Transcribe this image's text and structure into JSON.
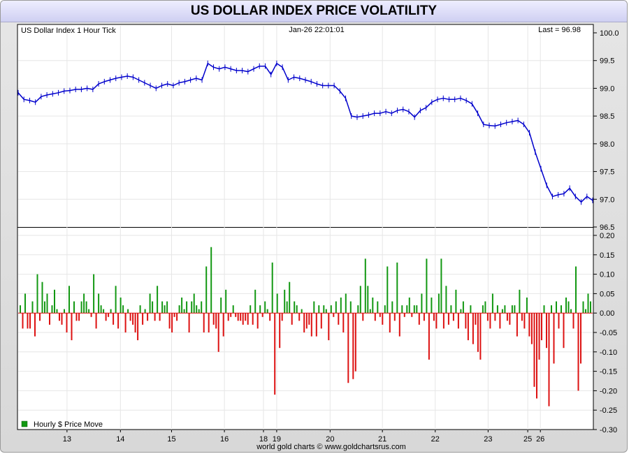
{
  "window": {
    "title": "US DOLLAR INDEX PRICE VOLATILITY"
  },
  "colors": {
    "price_line": "#0000cc",
    "up_bar": "#129812",
    "down_bar": "#dd1111",
    "grid": "#e6e6e6"
  },
  "chart_data": [
    {
      "type": "line",
      "title": "US Dollar Index 1 Hour Tick",
      "timestamp_label": "Jan-26  22:01:01",
      "last_label": "Last = 96.98",
      "ylim": [
        96.5,
        100.0
      ],
      "y_ticks": [
        "96.5",
        "97.0",
        "97.5",
        "98.0",
        "98.5",
        "99.0",
        "99.5",
        "100.0"
      ],
      "grid": true,
      "x_index_range": [
        0,
        100
      ],
      "series": [
        {
          "points": [
            [
              0,
              98.92
            ],
            [
              1,
              98.8
            ],
            [
              2,
              98.78
            ],
            [
              3,
              98.75
            ],
            [
              4,
              98.85
            ],
            [
              5,
              98.88
            ],
            [
              6,
              98.9
            ],
            [
              7,
              98.92
            ],
            [
              8,
              98.95
            ],
            [
              9,
              98.96
            ],
            [
              10,
              98.98
            ],
            [
              11,
              98.98
            ],
            [
              12,
              99.0
            ],
            [
              13,
              98.98
            ],
            [
              14,
              99.08
            ],
            [
              15,
              99.12
            ],
            [
              16,
              99.15
            ],
            [
              17,
              99.18
            ],
            [
              18,
              99.2
            ],
            [
              19,
              99.22
            ],
            [
              20,
              99.2
            ],
            [
              21,
              99.15
            ],
            [
              22,
              99.1
            ],
            [
              23,
              99.05
            ],
            [
              24,
              99.0
            ],
            [
              25,
              99.05
            ],
            [
              26,
              99.08
            ],
            [
              27,
              99.05
            ],
            [
              28,
              99.1
            ],
            [
              29,
              99.12
            ],
            [
              30,
              99.15
            ],
            [
              31,
              99.18
            ],
            [
              32,
              99.15
            ],
            [
              33,
              99.45
            ],
            [
              34,
              99.38
            ],
            [
              35,
              99.35
            ],
            [
              36,
              99.38
            ],
            [
              37,
              99.35
            ],
            [
              38,
              99.32
            ],
            [
              39,
              99.32
            ],
            [
              40,
              99.3
            ],
            [
              41,
              99.35
            ],
            [
              42,
              99.4
            ],
            [
              43,
              99.4
            ],
            [
              44,
              99.25
            ],
            [
              45,
              99.45
            ],
            [
              46,
              99.38
            ],
            [
              47,
              99.15
            ],
            [
              48,
              99.2
            ],
            [
              49,
              99.18
            ],
            [
              50,
              99.15
            ],
            [
              51,
              99.12
            ],
            [
              52,
              99.08
            ],
            [
              53,
              99.05
            ],
            [
              54,
              99.05
            ],
            [
              55,
              99.05
            ],
            [
              56,
              98.95
            ],
            [
              57,
              98.82
            ],
            [
              58,
              98.5
            ],
            [
              59,
              98.48
            ],
            [
              60,
              98.5
            ],
            [
              61,
              98.52
            ],
            [
              62,
              98.55
            ],
            [
              63,
              98.55
            ],
            [
              64,
              98.58
            ],
            [
              65,
              98.55
            ],
            [
              66,
              98.6
            ],
            [
              67,
              98.62
            ],
            [
              68,
              98.58
            ],
            [
              69,
              98.48
            ],
            [
              70,
              98.6
            ],
            [
              71,
              98.65
            ],
            [
              72,
              98.75
            ],
            [
              73,
              98.8
            ],
            [
              74,
              98.82
            ],
            [
              75,
              98.8
            ],
            [
              76,
              98.8
            ],
            [
              77,
              98.82
            ],
            [
              78,
              98.78
            ],
            [
              79,
              98.72
            ],
            [
              80,
              98.55
            ],
            [
              81,
              98.35
            ],
            [
              82,
              98.33
            ],
            [
              83,
              98.32
            ],
            [
              84,
              98.35
            ],
            [
              85,
              98.38
            ],
            [
              86,
              98.4
            ],
            [
              87,
              98.42
            ],
            [
              88,
              98.35
            ],
            [
              89,
              98.2
            ],
            [
              90,
              97.85
            ],
            [
              91,
              97.55
            ],
            [
              92,
              97.25
            ],
            [
              93,
              97.05
            ],
            [
              94,
              97.08
            ],
            [
              95,
              97.1
            ],
            [
              96,
              97.2
            ],
            [
              97,
              97.05
            ],
            [
              98,
              96.95
            ],
            [
              99,
              97.05
            ],
            [
              100,
              96.98
            ]
          ]
        }
      ]
    },
    {
      "type": "bar",
      "ylim": [
        -0.3,
        0.2
      ],
      "y_ticks": [
        "-0.30",
        "-0.25",
        "-0.20",
        "-0.15",
        "-0.10",
        "-0.05",
        "0.00",
        "0.05",
        "0.10",
        "0.15",
        "0.20"
      ],
      "legend": "Hourly $ Price Move",
      "legend_position": "bottom-left",
      "x_tick_labels": [
        {
          "text": "13",
          "index": 8.5
        },
        {
          "text": "14",
          "index": 17.8
        },
        {
          "text": "15",
          "index": 26.7
        },
        {
          "text": "16",
          "index": 35.9
        },
        {
          "text": "18",
          "index": 42.7
        },
        {
          "text": "19",
          "index": 45.0
        },
        {
          "text": "20",
          "index": 54.3
        },
        {
          "text": "21",
          "index": 63.4
        },
        {
          "text": "22",
          "index": 72.6
        },
        {
          "text": "23",
          "index": 81.8
        },
        {
          "text": "25",
          "index": 88.7
        },
        {
          "text": "26",
          "index": 90.9
        }
      ],
      "values": [
        0.02,
        -0.04,
        0.05,
        -0.04,
        -0.04,
        0.03,
        -0.06,
        0.1,
        -0.02,
        0.08,
        0.03,
        0.05,
        -0.03,
        0.02,
        0.06,
        0.01,
        -0.02,
        -0.03,
        0.01,
        -0.05,
        0.07,
        -0.07,
        0.03,
        -0.02,
        -0.02,
        0.03,
        0.05,
        0.03,
        0.01,
        -0.01,
        0.1,
        -0.04,
        0.05,
        0.02,
        0.01,
        -0.02,
        -0.01,
        0.01,
        -0.03,
        0.07,
        -0.04,
        0.04,
        0.02,
        -0.05,
        0.01,
        -0.02,
        -0.03,
        -0.05,
        -0.07,
        0.02,
        -0.03,
        0.01,
        -0.02,
        0.05,
        0.03,
        -0.02,
        0.07,
        -0.02,
        0.03,
        0.02,
        0.03,
        -0.04,
        -0.05,
        -0.01,
        -0.02,
        0.02,
        0.04,
        0.01,
        0.03,
        -0.05,
        0.03,
        0.05,
        0.02,
        0.01,
        0.03,
        -0.05,
        0.12,
        -0.05,
        0.17,
        -0.03,
        -0.04,
        -0.1,
        0.04,
        -0.06,
        0.06,
        -0.02,
        -0.01,
        0.02,
        -0.01,
        -0.02,
        -0.02,
        -0.03,
        -0.02,
        -0.03,
        0.02,
        -0.03,
        0.06,
        -0.04,
        0.02,
        -0.01,
        0.03,
        0.01,
        -0.02,
        0.13,
        -0.21,
        0.05,
        -0.09,
        -0.02,
        0.06,
        0.03,
        0.08,
        -0.03,
        0.03,
        0.02,
        -0.02,
        0.01,
        -0.05,
        -0.04,
        -0.03,
        -0.06,
        0.03,
        -0.06,
        0.02,
        -0.04,
        0.02,
        0.01,
        -0.07,
        0.02,
        -0.01,
        0.03,
        -0.03,
        0.04,
        -0.05,
        0.05,
        -0.18,
        0.03,
        -0.17,
        -0.15,
        0.02,
        0.07,
        -0.02,
        0.14,
        0.07,
        0.01,
        0.04,
        -0.02,
        0.03,
        -0.01,
        -0.03,
        0.02,
        0.12,
        -0.05,
        0.03,
        -0.02,
        0.13,
        -0.06,
        0.02,
        -0.01,
        0.02,
        0.04,
        -0.01,
        0.02,
        0.02,
        -0.03,
        0.05,
        -0.02,
        0.14,
        -0.12,
        0.04,
        -0.02,
        -0.04,
        0.05,
        0.14,
        -0.04,
        0.07,
        -0.03,
        0.02,
        -0.02,
        0.06,
        -0.04,
        0.01,
        0.03,
        -0.04,
        -0.07,
        0.02,
        -0.08,
        -0.03,
        -0.1,
        -0.12,
        0.02,
        0.03,
        -0.02,
        -0.04,
        0.05,
        -0.02,
        0.02,
        -0.04,
        0.01,
        0.02,
        -0.02,
        -0.03,
        0.02,
        0.02,
        -0.06,
        0.06,
        -0.02,
        -0.04,
        0.04,
        -0.06,
        -0.08,
        -0.19,
        -0.22,
        -0.12,
        -0.07,
        0.02,
        -0.09,
        -0.24,
        0.02,
        -0.13,
        0.03,
        -0.04,
        0.02,
        -0.09,
        0.04,
        0.03,
        0.01,
        -0.04,
        0.12,
        -0.2,
        -0.13,
        0.03,
        0.01,
        0.05,
        0.03
      ]
    }
  ],
  "footer": {
    "credit": "world gold charts © www.goldchartsrus.com"
  }
}
